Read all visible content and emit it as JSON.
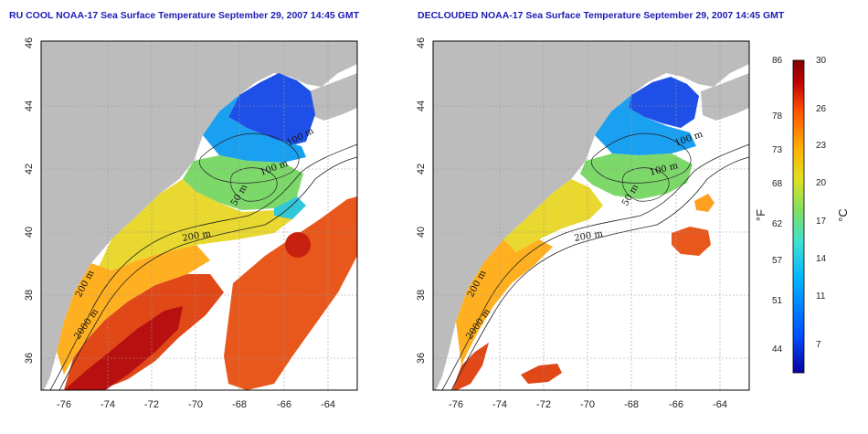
{
  "panels": [
    {
      "title": "RU COOL NOAA-17 Sea Surface Temperature September 29, 2007 14:45 GMT",
      "lat_ticks": [
        "46",
        "44",
        "42",
        "40",
        "38",
        "36"
      ],
      "lon_ticks": [
        "-76",
        "-74",
        "-72",
        "-70",
        "-68",
        "-66",
        "-64"
      ],
      "contour_labels": [
        "100 m",
        "100 m",
        "50 m",
        "200 m",
        "200 m",
        "2000 m"
      ]
    },
    {
      "title": "DECLOUDED NOAA-17 Sea Surface Temperature September 29, 2007 14:45 GMT",
      "lat_ticks": [
        "46",
        "44",
        "42",
        "40",
        "38",
        "36"
      ],
      "lon_ticks": [
        "-76",
        "-74",
        "-72",
        "-70",
        "-68",
        "-66",
        "-64"
      ],
      "contour_labels": [
        "100 m",
        "100 m",
        "50 m",
        "200 m",
        "200 m",
        "2000 m"
      ]
    }
  ],
  "colorbar": {
    "fahrenheit_ticks": [
      "86",
      "78",
      "73",
      "68",
      "62",
      "57",
      "51",
      "44"
    ],
    "celsius_ticks": [
      "30",
      "26",
      "23",
      "20",
      "17",
      "14",
      "11",
      "7"
    ],
    "fahrenheit_unit": "°F",
    "celsius_unit": "°C",
    "range_c": [
      4,
      30
    ],
    "colors": [
      "#0a00a0",
      "#0050ff",
      "#00b4ff",
      "#40e0d0",
      "#80e060",
      "#e0e020",
      "#ffb000",
      "#ff5000",
      "#c00000",
      "#800000"
    ]
  },
  "colors": {
    "land": "#bcbcbc",
    "ocean_masked": "#ffffff",
    "contour": "#222222",
    "grid": "#9a9a9a"
  }
}
